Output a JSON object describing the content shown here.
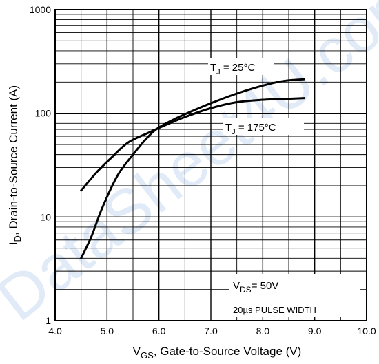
{
  "watermark": "DataSheet4U.com",
  "chart_data": {
    "type": "line",
    "xlabel_main": "V",
    "xlabel_sub": "GS",
    "xlabel_rest": ", Gate-to-Source Voltage (V)",
    "ylabel_main": "I",
    "ylabel_sub": "D",
    "ylabel_rest": ", Drain-to-Source Current (A)",
    "xlim": [
      4.0,
      10.0
    ],
    "ylim": [
      1,
      1000
    ],
    "yscale": "log",
    "grid": true,
    "x_ticks": [
      "4.0",
      "5.0",
      "6.0",
      "7.0",
      "8.0",
      "9.0",
      "10.0"
    ],
    "y_ticks": [
      "1",
      "10",
      "100",
      "1000"
    ],
    "series": [
      {
        "name_main": "T",
        "name_sub": "J",
        "name_rest": " = 25°C",
        "x": [
          4.5,
          4.7,
          4.9,
          5.2,
          5.5,
          5.8,
          6.0,
          6.3,
          6.6,
          7.0,
          7.5,
          8.0,
          8.4,
          8.8
        ],
        "values": [
          4,
          6.5,
          12,
          25,
          40,
          60,
          73,
          88,
          103,
          125,
          155,
          185,
          205,
          213
        ]
      },
      {
        "name_main": "T",
        "name_sub": "J",
        "name_rest": " = 175°C",
        "x": [
          4.5,
          4.8,
          5.1,
          5.4,
          5.8,
          6.1,
          6.5,
          7.0,
          7.5,
          8.0,
          8.5,
          8.8
        ],
        "values": [
          18,
          27,
          38,
          52,
          65,
          76,
          92,
          112,
          128,
          135,
          138,
          140
        ]
      }
    ],
    "annotation_line1_main": "V",
    "annotation_line1_sub": "DS",
    "annotation_line1_rest": "= 50V",
    "annotation_line2": "20µs PULSE WIDTH"
  }
}
